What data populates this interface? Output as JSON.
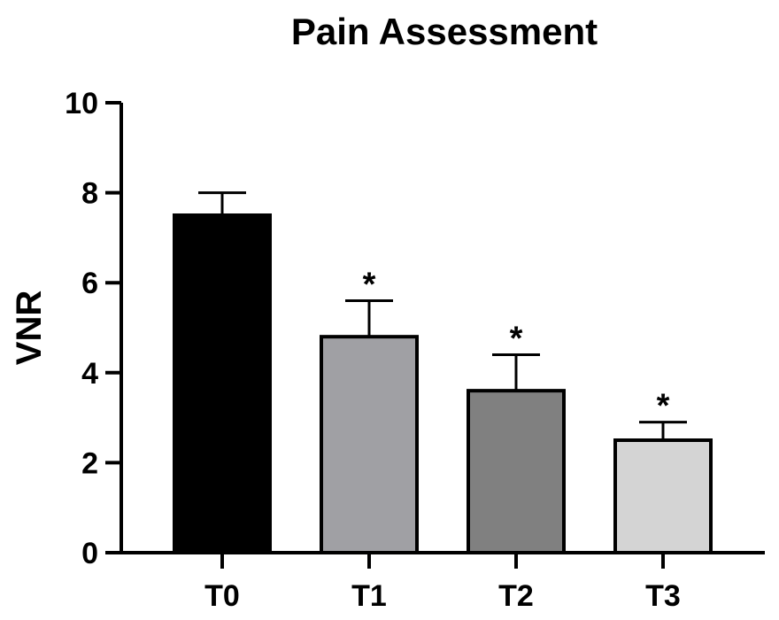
{
  "chart_data": {
    "type": "bar",
    "title": "Pain Assessment",
    "xlabel": "",
    "ylabel": "VNR",
    "ylim": [
      0,
      10
    ],
    "yticks": [
      0,
      2,
      4,
      6,
      8,
      10
    ],
    "grid": false,
    "categories": [
      "T0",
      "T1",
      "T2",
      "T3"
    ],
    "values": [
      7.5,
      4.8,
      3.6,
      2.5
    ],
    "error": [
      0.5,
      0.8,
      0.8,
      0.4
    ],
    "annotations": [
      "",
      "*",
      "*",
      "*"
    ],
    "colors": [
      "#000000",
      "#a0a0a4",
      "#808080",
      "#d4d4d4"
    ]
  }
}
